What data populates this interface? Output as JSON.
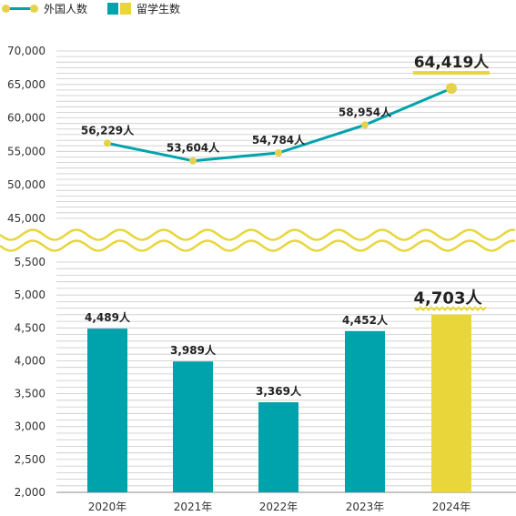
{
  "legend": [
    {
      "label": "外国人数",
      "kind": "line"
    },
    {
      "label": "留学生数",
      "kind": "bars"
    }
  ],
  "colors": {
    "teal": "#00A3AC",
    "yellow": "#E8D63A",
    "marker": "#E4D24A",
    "grid": "#C9C9C9",
    "text": "#222222"
  },
  "chart_data": {
    "type": "combo",
    "categories": [
      "2020年",
      "2021年",
      "2022年",
      "2023年",
      "2024年"
    ],
    "line": {
      "name": "外国人数",
      "values": [
        56229,
        53604,
        54784,
        58954,
        64419
      ],
      "labels": [
        "56,229人",
        "53,604人",
        "54,784人",
        "58,954人",
        "64,419人"
      ],
      "ylim": [
        45000,
        70000
      ],
      "ticks": [
        "70,000",
        "65,000",
        "60,000",
        "55,000",
        "50,000",
        "45,000"
      ],
      "tick_values": [
        70000,
        65000,
        60000,
        55000,
        50000,
        45000
      ]
    },
    "bars": {
      "name": "留学生数",
      "values": [
        4489,
        3989,
        3369,
        4452,
        4703
      ],
      "labels": [
        "4,489人",
        "3,989人",
        "3,369人",
        "4,452人",
        "4,703人"
      ],
      "ylim": [
        2000,
        5500
      ],
      "ticks": [
        "5,500",
        "5,000",
        "4,500",
        "4,000",
        "3,500",
        "3,000",
        "2,500",
        "2,000"
      ],
      "tick_values": [
        5500,
        5000,
        4500,
        4000,
        3500,
        3000,
        2500,
        2000
      ]
    },
    "axis_break": true,
    "highlight_index": 4
  }
}
